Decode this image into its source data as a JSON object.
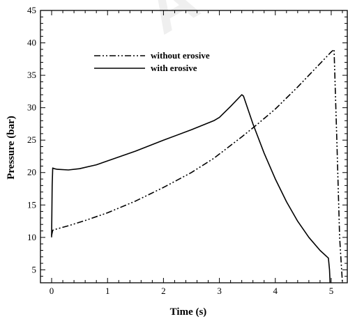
{
  "chart_data": {
    "type": "line",
    "title": "",
    "xlabel": "Time (s)",
    "ylabel": "Pressure (bar)",
    "xlim": [
      -0.2,
      5.3
    ],
    "ylim": [
      3,
      45
    ],
    "x_ticks": [
      0,
      1,
      2,
      3,
      4,
      5
    ],
    "y_ticks": [
      5,
      10,
      15,
      20,
      25,
      30,
      35,
      40,
      45
    ],
    "grid": false,
    "legend_position": "top-left",
    "series": [
      {
        "name": "without erosive",
        "style": "dash-dot-dot",
        "color": "#000000",
        "x": [
          0.0,
          0.02,
          0.05,
          0.3,
          0.6,
          1.0,
          1.5,
          2.0,
          2.5,
          2.9,
          3.4,
          3.7,
          4.0,
          4.4,
          4.8,
          5.0,
          5.05,
          5.1,
          5.15,
          5.2
        ],
        "y": [
          10.3,
          11.1,
          11.2,
          11.8,
          12.6,
          13.8,
          15.6,
          17.7,
          20.0,
          22.2,
          25.5,
          27.6,
          29.8,
          33.2,
          36.8,
          38.6,
          39.0,
          25.0,
          10.0,
          3.0
        ]
      },
      {
        "name": "with erosive",
        "style": "solid",
        "color": "#000000",
        "x": [
          0.0,
          0.01,
          0.02,
          0.05,
          0.1,
          0.3,
          0.5,
          0.8,
          1.0,
          1.5,
          2.0,
          2.5,
          2.9,
          3.0,
          3.2,
          3.4,
          3.43,
          3.6,
          3.8,
          4.0,
          4.2,
          4.4,
          4.6,
          4.8,
          4.95,
          4.97,
          4.98
        ],
        "y": [
          10.0,
          18.0,
          20.7,
          20.6,
          20.5,
          20.4,
          20.6,
          21.2,
          21.8,
          23.3,
          25.0,
          26.6,
          28.0,
          28.5,
          30.2,
          32.0,
          31.8,
          27.5,
          23.0,
          19.0,
          15.5,
          12.5,
          10.0,
          8.0,
          6.8,
          5.0,
          3.0
        ]
      }
    ]
  },
  "watermark_text": "A"
}
